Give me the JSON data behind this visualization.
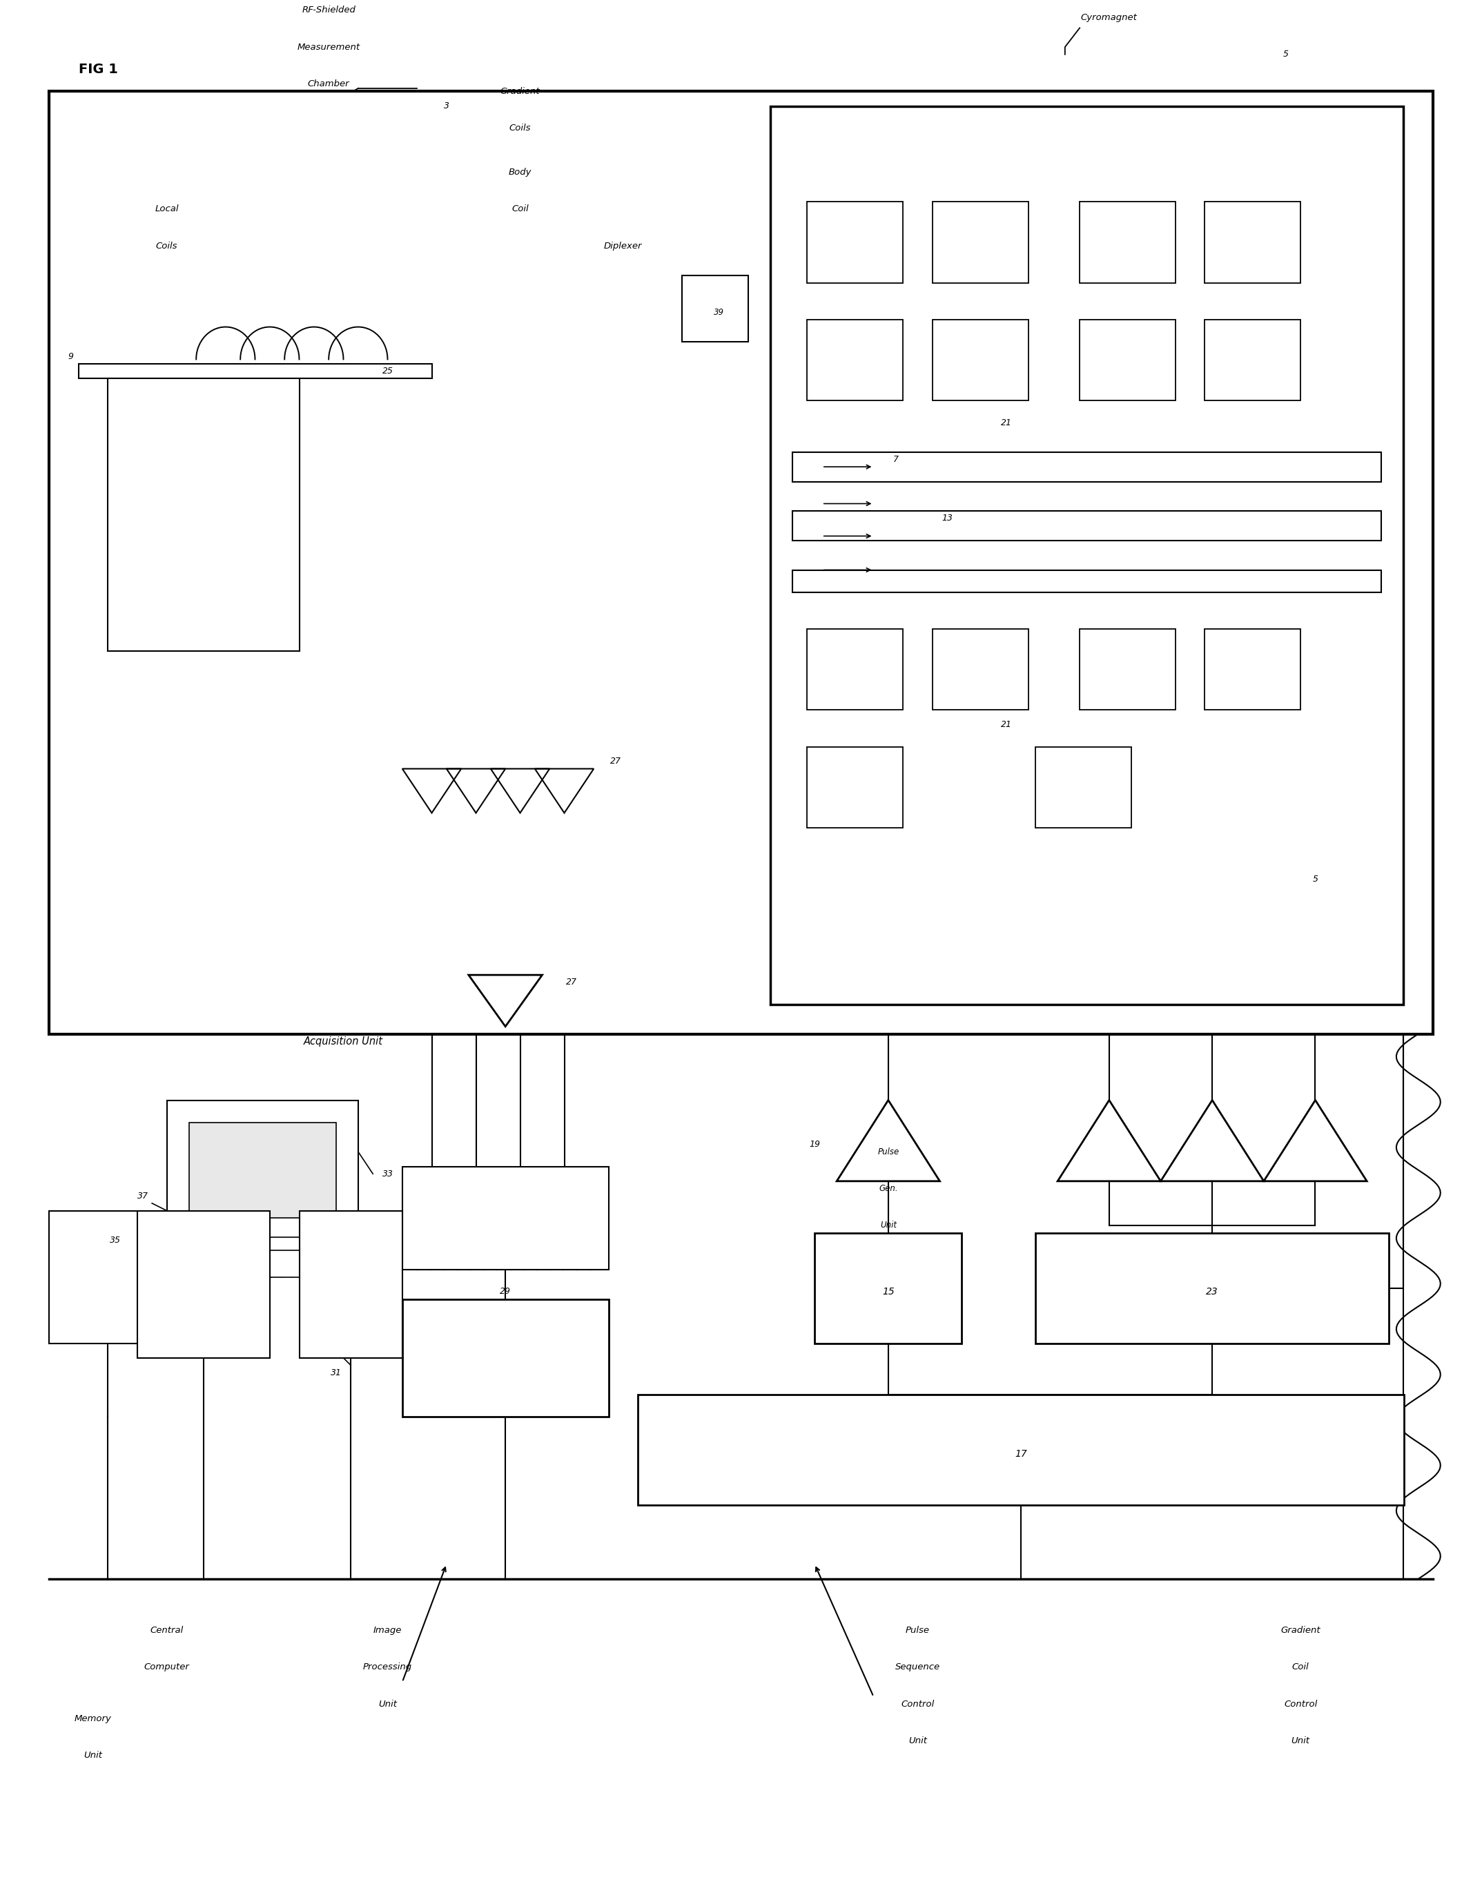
{
  "bg": "#ffffff",
  "fig_label": "FIG 1",
  "numbers": [
    "3",
    "5",
    "7",
    "9",
    "13",
    "15",
    "17",
    "19",
    "21",
    "23",
    "25",
    "27",
    "29",
    "31",
    "33",
    "35",
    "37",
    "39"
  ],
  "labels": {
    "rf_shielded_1": "RF-Shielded",
    "rf_shielded_2": "Measurement",
    "rf_shielded_3": "Chamber",
    "cyromagnet": "Cyromagnet",
    "gradient_coils_1": "Gradient",
    "gradient_coils_2": "Coils",
    "body_coil_1": "Body",
    "body_coil_2": "Coil",
    "diplexer": "Diplexer",
    "local_coils_1": "Local",
    "local_coils_2": "Coils",
    "acquisition": "Acquisition Unit",
    "pulse_gen_1": "Pulse",
    "pulse_gen_2": "Gen.",
    "pulse_gen_3": "Unit",
    "central_computer_1": "Central",
    "central_computer_2": "Computer",
    "memory_1": "Memory",
    "memory_2": "Unit",
    "image_proc_1": "Image",
    "image_proc_2": "Processing",
    "image_proc_3": "Unit",
    "pulse_seq_1": "Pulse",
    "pulse_seq_2": "Sequence",
    "pulse_seq_3": "Control",
    "pulse_seq_4": "Unit",
    "grad_ctrl_1": "Gradient",
    "grad_ctrl_2": "Coil",
    "grad_ctrl_3": "Control",
    "grad_ctrl_4": "Unit"
  }
}
